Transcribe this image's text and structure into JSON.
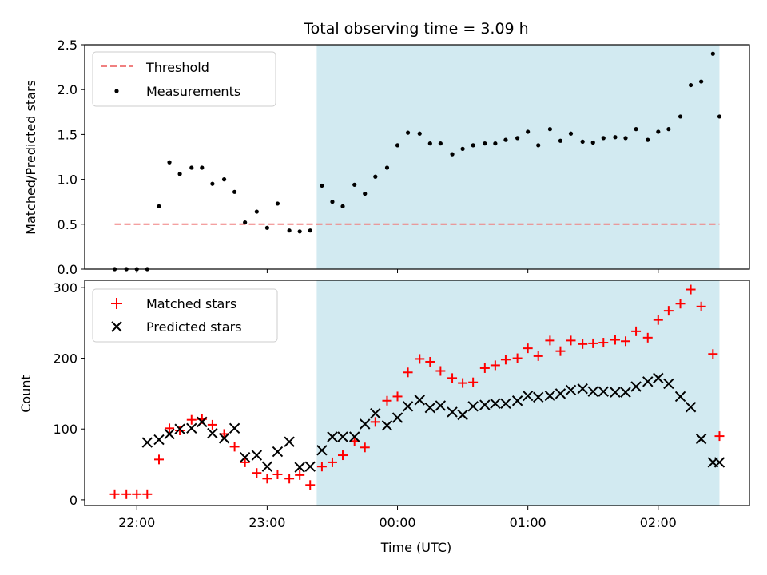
{
  "title": "Total observing time = 3.09 h",
  "chart_data": [
    {
      "type": "scatter",
      "ylabel": "Matched/Predicted stars",
      "xlabel": "",
      "xlim_hours": [
        -2.4,
        2.7
      ],
      "ylim": [
        0,
        2.5
      ],
      "yticks": [
        0.0,
        0.5,
        1.0,
        1.5,
        2.0,
        2.5
      ],
      "ytick_labels": [
        "0.0",
        "0.5",
        "1.0",
        "1.5",
        "2.0",
        "2.5"
      ],
      "xticks_hours": [
        -2,
        -1,
        0,
        1,
        2
      ],
      "shaded_region_hours": [
        -0.62,
        2.47
      ],
      "shade_color": "#add8e6",
      "threshold": {
        "name": "Threshold",
        "value": 0.5,
        "x_range_hours": [
          -2.17,
          2.47
        ],
        "color": "#f08080"
      },
      "series": [
        {
          "name": "Measurements",
          "color": "#000000",
          "x_hours": [
            -2.17,
            -2.08,
            -2.0,
            -1.92,
            -1.83,
            -1.75,
            -1.67,
            -1.58,
            -1.5,
            -1.42,
            -1.33,
            -1.25,
            -1.17,
            -1.08,
            -1.0,
            -0.92,
            -0.83,
            -0.75,
            -0.67,
            -0.58,
            -0.5,
            -0.42,
            -0.33,
            -0.25,
            -0.17,
            -0.08,
            0.0,
            0.08,
            0.17,
            0.25,
            0.33,
            0.42,
            0.5,
            0.58,
            0.67,
            0.75,
            0.83,
            0.92,
            1.0,
            1.08,
            1.17,
            1.25,
            1.33,
            1.42,
            1.5,
            1.58,
            1.67,
            1.75,
            1.83,
            1.92,
            2.0,
            2.08,
            2.17,
            2.25,
            2.33,
            2.42
          ],
          "values": [
            0.0,
            0.0,
            0.0,
            0.0,
            0.7,
            1.19,
            1.06,
            1.13,
            1.13,
            0.95,
            1.0,
            0.86,
            0.52,
            0.64,
            0.46,
            0.73,
            0.43,
            0.42,
            0.43,
            0.93,
            0.75,
            0.7,
            0.94,
            0.84,
            1.03,
            1.13,
            1.38,
            1.52,
            1.51,
            1.4,
            1.4,
            1.28,
            1.34,
            1.38,
            1.4,
            1.4,
            1.44,
            1.46,
            1.53,
            1.38,
            1.56,
            1.43,
            1.51,
            1.42,
            1.41,
            1.46,
            1.47,
            1.46,
            1.56,
            1.44,
            1.53,
            1.56,
            1.7,
            2.05,
            2.09,
            2.4
          ]
        }
      ],
      "extra_point": {
        "x_hours": 2.47,
        "value": 1.7
      },
      "legend": {
        "placement": "upper-left",
        "entries": [
          "Threshold",
          "Measurements"
        ]
      }
    },
    {
      "type": "scatter",
      "ylabel": "Count",
      "xlabel": "Time (UTC)",
      "xlim_hours": [
        -2.4,
        2.7
      ],
      "ylim": [
        -8,
        310
      ],
      "yticks": [
        0,
        100,
        200,
        300
      ],
      "ytick_labels": [
        "0",
        "100",
        "200",
        "300"
      ],
      "xticks_hours": [
        -2,
        -1,
        0,
        1,
        2
      ],
      "xtick_labels": [
        "22:00",
        "23:00",
        "00:00",
        "01:00",
        "02:00"
      ],
      "shaded_region_hours": [
        -0.62,
        2.47
      ],
      "shade_color": "#add8e6",
      "series": [
        {
          "name": "Matched stars",
          "marker": "plus",
          "color": "#ff0000",
          "x_hours": [
            -2.17,
            -2.08,
            -2.0,
            -1.92,
            -1.83,
            -1.75,
            -1.67,
            -1.58,
            -1.5,
            -1.42,
            -1.33,
            -1.25,
            -1.17,
            -1.08,
            -1.0,
            -0.92,
            -0.83,
            -0.75,
            -0.67,
            -0.58,
            -0.5,
            -0.42,
            -0.33,
            -0.25,
            -0.17,
            -0.08,
            0.0,
            0.08,
            0.17,
            0.25,
            0.33,
            0.42,
            0.5,
            0.58,
            0.67,
            0.75,
            0.83,
            0.92,
            1.0,
            1.08,
            1.17,
            1.25,
            1.33,
            1.42,
            1.5,
            1.58,
            1.67,
            1.75,
            1.83,
            1.92,
            2.0,
            2.08,
            2.17,
            2.25,
            2.33,
            2.42,
            2.47
          ],
          "values": [
            8,
            8,
            8,
            8,
            57,
            101,
            98,
            113,
            114,
            106,
            93,
            75,
            53,
            38,
            30,
            36,
            30,
            35,
            21,
            47,
            53,
            63,
            83,
            74,
            110,
            140,
            146,
            180,
            199,
            195,
            182,
            172,
            165,
            166,
            186,
            190,
            198,
            200,
            214,
            203,
            225,
            210,
            225,
            220,
            221,
            222,
            226,
            224,
            238,
            229,
            254,
            267,
            277,
            297,
            273,
            206,
            90
          ]
        },
        {
          "name": "Predicted stars",
          "marker": "x",
          "color": "#000000",
          "x_hours": [
            -1.92,
            -1.83,
            -1.75,
            -1.67,
            -1.58,
            -1.5,
            -1.42,
            -1.33,
            -1.25,
            -1.17,
            -1.08,
            -1.0,
            -0.92,
            -0.83,
            -0.75,
            -0.67,
            -0.58,
            -0.5,
            -0.42,
            -0.33,
            -0.25,
            -0.17,
            -0.08,
            0.0,
            0.08,
            0.17,
            0.25,
            0.33,
            0.42,
            0.5,
            0.58,
            0.67,
            0.75,
            0.83,
            0.92,
            1.0,
            1.08,
            1.17,
            1.25,
            1.33,
            1.42,
            1.5,
            1.58,
            1.67,
            1.75,
            1.83,
            1.92,
            2.0,
            2.08,
            2.17,
            2.25,
            2.33,
            2.42,
            2.47
          ],
          "values": [
            81,
            85,
            93,
            100,
            101,
            110,
            94,
            87,
            101,
            60,
            63,
            47,
            68,
            82,
            46,
            47,
            70,
            89,
            89,
            89,
            107,
            122,
            105,
            116,
            132,
            141,
            130,
            133,
            124,
            120,
            132,
            134,
            136,
            136,
            140,
            147,
            145,
            147,
            150,
            155,
            157,
            153,
            153,
            152,
            152,
            160,
            167,
            172,
            164,
            146,
            131,
            86,
            53,
            53
          ]
        }
      ],
      "legend": {
        "placement": "upper-left",
        "entries": [
          "Matched stars",
          "Predicted stars"
        ]
      }
    }
  ]
}
